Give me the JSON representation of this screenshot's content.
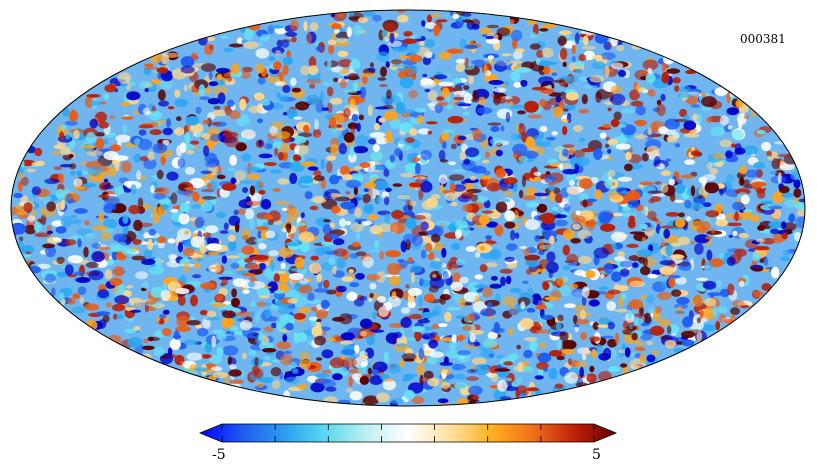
{
  "map": {
    "id_label": "000381",
    "projection": "mollweide",
    "description_colors": [
      "#0000c8",
      "#1f5cf2",
      "#2aa7f2",
      "#67e2f5",
      "#ffffff",
      "#ffd68a",
      "#ffa31a",
      "#ec5a12",
      "#b81e08",
      "#5a0000"
    ]
  },
  "colorbar": {
    "min_label": "-5",
    "max_label": "5",
    "colors": [
      "#0000ff",
      "#1e5bf0",
      "#2a9cf0",
      "#59d9f0",
      "#bdf0f0",
      "#ffffff",
      "#ffe2a0",
      "#ffb020",
      "#f07018",
      "#c02008",
      "#640000"
    ]
  }
}
